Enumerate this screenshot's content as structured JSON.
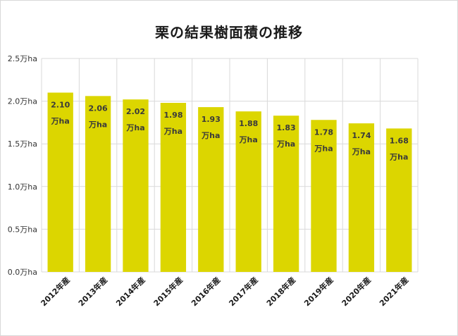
{
  "chart_data": {
    "type": "bar",
    "title": "栗の結果樹面積の推移",
    "xlabel": "",
    "ylabel": "",
    "categories": [
      "2012年産",
      "2013年産",
      "2014年産",
      "2015年産",
      "2016年産",
      "2017年産",
      "2018年産",
      "2019年産",
      "2020年産",
      "2021年産"
    ],
    "values": [
      2.1,
      2.06,
      2.02,
      1.98,
      1.93,
      1.88,
      1.83,
      1.78,
      1.74,
      1.68
    ],
    "value_labels": [
      "2.10",
      "2.06",
      "2.02",
      "1.98",
      "1.93",
      "1.88",
      "1.83",
      "1.78",
      "1.74",
      "1.68"
    ],
    "value_unit": "万ha",
    "ylim": [
      0,
      2.5
    ],
    "yticks": [
      0,
      0.5,
      1.0,
      1.5,
      2.0,
      2.5
    ],
    "ytick_labels": [
      "0.0万ha",
      "0.5万ha",
      "1.0万ha",
      "1.5万ha",
      "2.0万ha",
      "2.5万ha"
    ],
    "grid": true,
    "bar_color": "#dcd600",
    "grid_color": "#d9d9d9"
  }
}
